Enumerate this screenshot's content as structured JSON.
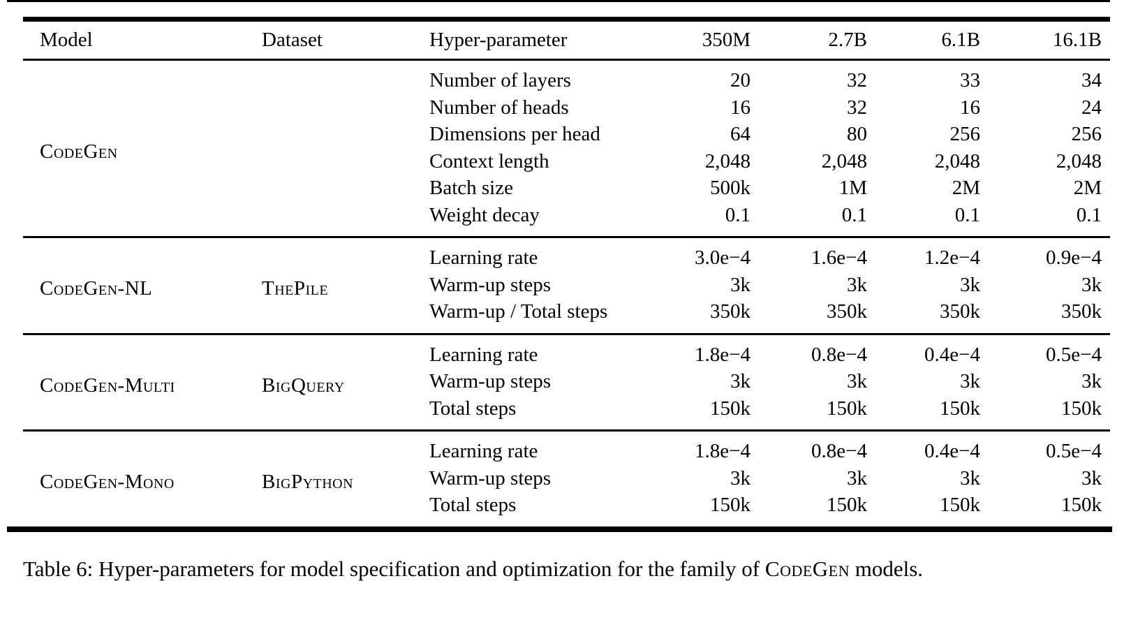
{
  "colors": {
    "text": "#000000",
    "background": "#ffffff",
    "rule": "#000000"
  },
  "table": {
    "columns": [
      "Model",
      "Dataset",
      "Hyper-parameter",
      "350M",
      "2.7B",
      "6.1B",
      "16.1B"
    ],
    "groups": [
      {
        "model": "CodeGen",
        "dataset": "",
        "rows": [
          {
            "param": "Number of layers",
            "values": [
              "20",
              "32",
              "33",
              "34"
            ]
          },
          {
            "param": "Number of heads",
            "values": [
              "16",
              "32",
              "16",
              "24"
            ]
          },
          {
            "param": "Dimensions per head",
            "values": [
              "64",
              "80",
              "256",
              "256"
            ]
          },
          {
            "param": "Context length",
            "values": [
              "2,048",
              "2,048",
              "2,048",
              "2,048"
            ]
          },
          {
            "param": "Batch size",
            "values": [
              "500k",
              "1M",
              "2M",
              "2M"
            ]
          },
          {
            "param": "Weight decay",
            "values": [
              "0.1",
              "0.1",
              "0.1",
              "0.1"
            ]
          }
        ]
      },
      {
        "model": "CodeGen-NL",
        "dataset": "ThePile",
        "rows": [
          {
            "param": "Learning rate",
            "values": [
              "3.0e−4",
              "1.6e−4",
              "1.2e−4",
              "0.9e−4"
            ]
          },
          {
            "param": "Warm-up steps",
            "values": [
              "3k",
              "3k",
              "3k",
              "3k"
            ]
          },
          {
            "param": "Warm-up / Total steps",
            "values": [
              "350k",
              "350k",
              "350k",
              "350k"
            ]
          }
        ]
      },
      {
        "model": "CodeGen-Multi",
        "dataset": "BigQuery",
        "rows": [
          {
            "param": "Learning rate",
            "values": [
              "1.8e−4",
              "0.8e−4",
              "0.4e−4",
              "0.5e−4"
            ]
          },
          {
            "param": "Warm-up steps",
            "values": [
              "3k",
              "3k",
              "3k",
              "3k"
            ]
          },
          {
            "param": "Total steps",
            "values": [
              "150k",
              "150k",
              "150k",
              "150k"
            ]
          }
        ]
      },
      {
        "model": "CodeGen-Mono",
        "dataset": "BigPython",
        "rows": [
          {
            "param": "Learning rate",
            "values": [
              "1.8e−4",
              "0.8e−4",
              "0.4e−4",
              "0.5e−4"
            ]
          },
          {
            "param": "Warm-up steps",
            "values": [
              "3k",
              "3k",
              "3k",
              "3k"
            ]
          },
          {
            "param": "Total steps",
            "values": [
              "150k",
              "150k",
              "150k",
              "150k"
            ]
          }
        ]
      }
    ]
  },
  "caption": {
    "prefix": "Table 6: Hyper-parameters for model specification and optimization for the family of ",
    "codegen": "CodeGen",
    "suffix": " models."
  }
}
